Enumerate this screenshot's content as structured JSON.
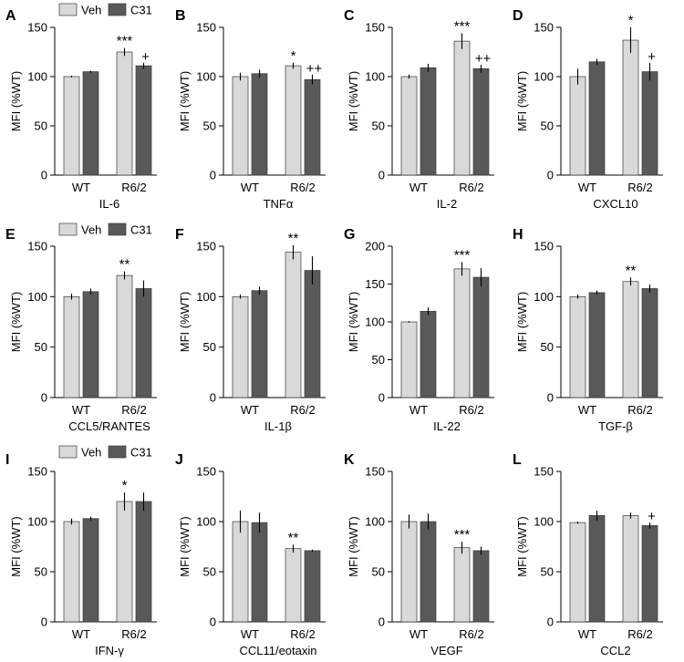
{
  "colors": {
    "veh": "#d9d9d9",
    "c31": "#595959",
    "axis": "#000000"
  },
  "legend": {
    "veh": "Veh",
    "c31": "C31"
  },
  "chart_data": [
    {
      "letter": "A",
      "type": "bar",
      "xlabel": "IL-6",
      "ylabel": "MFI (%WT)",
      "categories": [
        "WT",
        "R6/2"
      ],
      "yticks": [
        "0",
        "50",
        "100",
        "150"
      ],
      "ylim": [
        0,
        150
      ],
      "series": [
        {
          "name": "Veh",
          "values": [
            100,
            125
          ],
          "errors": [
            1,
            4
          ]
        },
        {
          "name": "C31",
          "values": [
            105,
            111
          ],
          "errors": [
            1,
            3
          ]
        }
      ],
      "annotations": [
        {
          "category": "R6/2",
          "series": "Veh",
          "text": "***"
        },
        {
          "category": "R6/2",
          "series": "C31",
          "text": "+"
        }
      ]
    },
    {
      "letter": "B",
      "type": "bar",
      "xlabel": "TNFα",
      "ylabel": "MFI (%WT)",
      "categories": [
        "WT",
        "R6/2"
      ],
      "yticks": [
        "0",
        "50",
        "100",
        "150"
      ],
      "ylim": [
        0,
        150
      ],
      "series": [
        {
          "name": "Veh",
          "values": [
            100,
            111
          ],
          "errors": [
            4,
            3
          ]
        },
        {
          "name": "C31",
          "values": [
            103,
            97
          ],
          "errors": [
            4,
            5
          ]
        }
      ],
      "annotations": [
        {
          "category": "R6/2",
          "series": "Veh",
          "text": "*"
        },
        {
          "category": "R6/2",
          "series": "C31",
          "text": "++"
        }
      ]
    },
    {
      "letter": "C",
      "type": "bar",
      "xlabel": "IL-2",
      "ylabel": "MFI (%WT)",
      "categories": [
        "WT",
        "R6/2"
      ],
      "yticks": [
        "0",
        "50",
        "100",
        "150"
      ],
      "ylim": [
        0,
        150
      ],
      "series": [
        {
          "name": "Veh",
          "values": [
            100,
            136
          ],
          "errors": [
            2,
            8
          ]
        },
        {
          "name": "C31",
          "values": [
            109,
            108
          ],
          "errors": [
            4,
            4
          ]
        }
      ],
      "annotations": [
        {
          "category": "R6/2",
          "series": "Veh",
          "text": "***"
        },
        {
          "category": "R6/2",
          "series": "C31",
          "text": "++"
        }
      ]
    },
    {
      "letter": "D",
      "type": "bar",
      "xlabel": "CXCL10",
      "ylabel": "MFI (%WT)",
      "categories": [
        "WT",
        "R6/2"
      ],
      "yticks": [
        "0",
        "50",
        "100",
        "150"
      ],
      "ylim": [
        0,
        150
      ],
      "series": [
        {
          "name": "Veh",
          "values": [
            100,
            137
          ],
          "errors": [
            8,
            13
          ]
        },
        {
          "name": "C31",
          "values": [
            115,
            105
          ],
          "errors": [
            3,
            9
          ]
        }
      ],
      "annotations": [
        {
          "category": "R6/2",
          "series": "Veh",
          "text": "*"
        },
        {
          "category": "R6/2",
          "series": "C31",
          "text": "+"
        }
      ]
    },
    {
      "letter": "E",
      "type": "bar",
      "xlabel": "CCL5/RANTES",
      "ylabel": "MFI (%WT)",
      "categories": [
        "WT",
        "R6/2"
      ],
      "yticks": [
        "0",
        "50",
        "100",
        "150"
      ],
      "ylim": [
        0,
        150
      ],
      "series": [
        {
          "name": "Veh",
          "values": [
            100,
            121
          ],
          "errors": [
            3,
            4
          ]
        },
        {
          "name": "C31",
          "values": [
            105,
            108
          ],
          "errors": [
            3,
            8
          ]
        }
      ],
      "annotations": [
        {
          "category": "R6/2",
          "series": "Veh",
          "text": "**"
        }
      ]
    },
    {
      "letter": "F",
      "type": "bar",
      "xlabel": "IL-1β",
      "ylabel": "MFI (%WT)",
      "categories": [
        "WT",
        "R6/2"
      ],
      "yticks": [
        "0",
        "50",
        "100",
        "150"
      ],
      "ylim": [
        0,
        150
      ],
      "series": [
        {
          "name": "Veh",
          "values": [
            100,
            144
          ],
          "errors": [
            2,
            7
          ]
        },
        {
          "name": "C31",
          "values": [
            106,
            126
          ],
          "errors": [
            4,
            14
          ]
        }
      ],
      "annotations": [
        {
          "category": "R6/2",
          "series": "Veh",
          "text": "**"
        }
      ]
    },
    {
      "letter": "G",
      "type": "bar",
      "xlabel": "IL-22",
      "ylabel": "MFI (%WT)",
      "categories": [
        "WT",
        "R6/2"
      ],
      "yticks": [
        "0",
        "50",
        "100",
        "150",
        "200"
      ],
      "ylim": [
        0,
        200
      ],
      "series": [
        {
          "name": "Veh",
          "values": [
            100,
            170
          ],
          "errors": [
            1,
            9
          ]
        },
        {
          "name": "C31",
          "values": [
            114,
            159
          ],
          "errors": [
            5,
            12
          ]
        }
      ],
      "annotations": [
        {
          "category": "R6/2",
          "series": "Veh",
          "text": "***"
        }
      ]
    },
    {
      "letter": "H",
      "type": "bar",
      "xlabel": "TGF-β",
      "ylabel": "MFI (%WT)",
      "categories": [
        "WT",
        "R6/2"
      ],
      "yticks": [
        "0",
        "50",
        "100",
        "150"
      ],
      "ylim": [
        0,
        150
      ],
      "series": [
        {
          "name": "Veh",
          "values": [
            100,
            115
          ],
          "errors": [
            2,
            4
          ]
        },
        {
          "name": "C31",
          "values": [
            104,
            108
          ],
          "errors": [
            2,
            4
          ]
        }
      ],
      "annotations": [
        {
          "category": "R6/2",
          "series": "Veh",
          "text": "**"
        }
      ]
    },
    {
      "letter": "I",
      "type": "bar",
      "xlabel": "IFN-γ",
      "ylabel": "MFI (%WT)",
      "categories": [
        "WT",
        "R6/2"
      ],
      "yticks": [
        "0",
        "50",
        "100",
        "150"
      ],
      "ylim": [
        0,
        150
      ],
      "series": [
        {
          "name": "Veh",
          "values": [
            100,
            120
          ],
          "errors": [
            3,
            9
          ]
        },
        {
          "name": "C31",
          "values": [
            103,
            120
          ],
          "errors": [
            2,
            9
          ]
        }
      ],
      "annotations": [
        {
          "category": "R6/2",
          "series": "Veh",
          "text": "*"
        }
      ]
    },
    {
      "letter": "J",
      "type": "bar",
      "xlabel": "CCL11/eotaxin",
      "ylabel": "MFI (%WT)",
      "categories": [
        "WT",
        "R6/2"
      ],
      "yticks": [
        "0",
        "50",
        "100",
        "150"
      ],
      "ylim": [
        0,
        150
      ],
      "series": [
        {
          "name": "Veh",
          "values": [
            100,
            73
          ],
          "errors": [
            11,
            4
          ]
        },
        {
          "name": "C31",
          "values": [
            99,
            71
          ],
          "errors": [
            10,
            1
          ]
        }
      ],
      "annotations": [
        {
          "category": "R6/2",
          "series": "Veh",
          "text": "**"
        }
      ]
    },
    {
      "letter": "K",
      "type": "bar",
      "xlabel": "VEGF",
      "ylabel": "MFI (%WT)",
      "categories": [
        "WT",
        "R6/2"
      ],
      "yticks": [
        "0",
        "50",
        "100",
        "150"
      ],
      "ylim": [
        0,
        150
      ],
      "series": [
        {
          "name": "Veh",
          "values": [
            100,
            74
          ],
          "errors": [
            7,
            6
          ]
        },
        {
          "name": "C31",
          "values": [
            100,
            71
          ],
          "errors": [
            8,
            4
          ]
        }
      ],
      "annotations": [
        {
          "category": "R6/2",
          "series": "Veh",
          "text": "***"
        }
      ]
    },
    {
      "letter": "L",
      "type": "bar",
      "xlabel": "CCL2",
      "ylabel": "MFI (%WT)",
      "categories": [
        "WT",
        "R6/2"
      ],
      "yticks": [
        "0",
        "50",
        "100",
        "150"
      ],
      "ylim": [
        0,
        150
      ],
      "series": [
        {
          "name": "Veh",
          "values": [
            99,
            106
          ],
          "errors": [
            1,
            3
          ]
        },
        {
          "name": "C31",
          "values": [
            106,
            96
          ],
          "errors": [
            5,
            3
          ]
        }
      ],
      "annotations": [
        {
          "category": "R6/2",
          "series": "C31",
          "text": "+"
        }
      ]
    }
  ]
}
